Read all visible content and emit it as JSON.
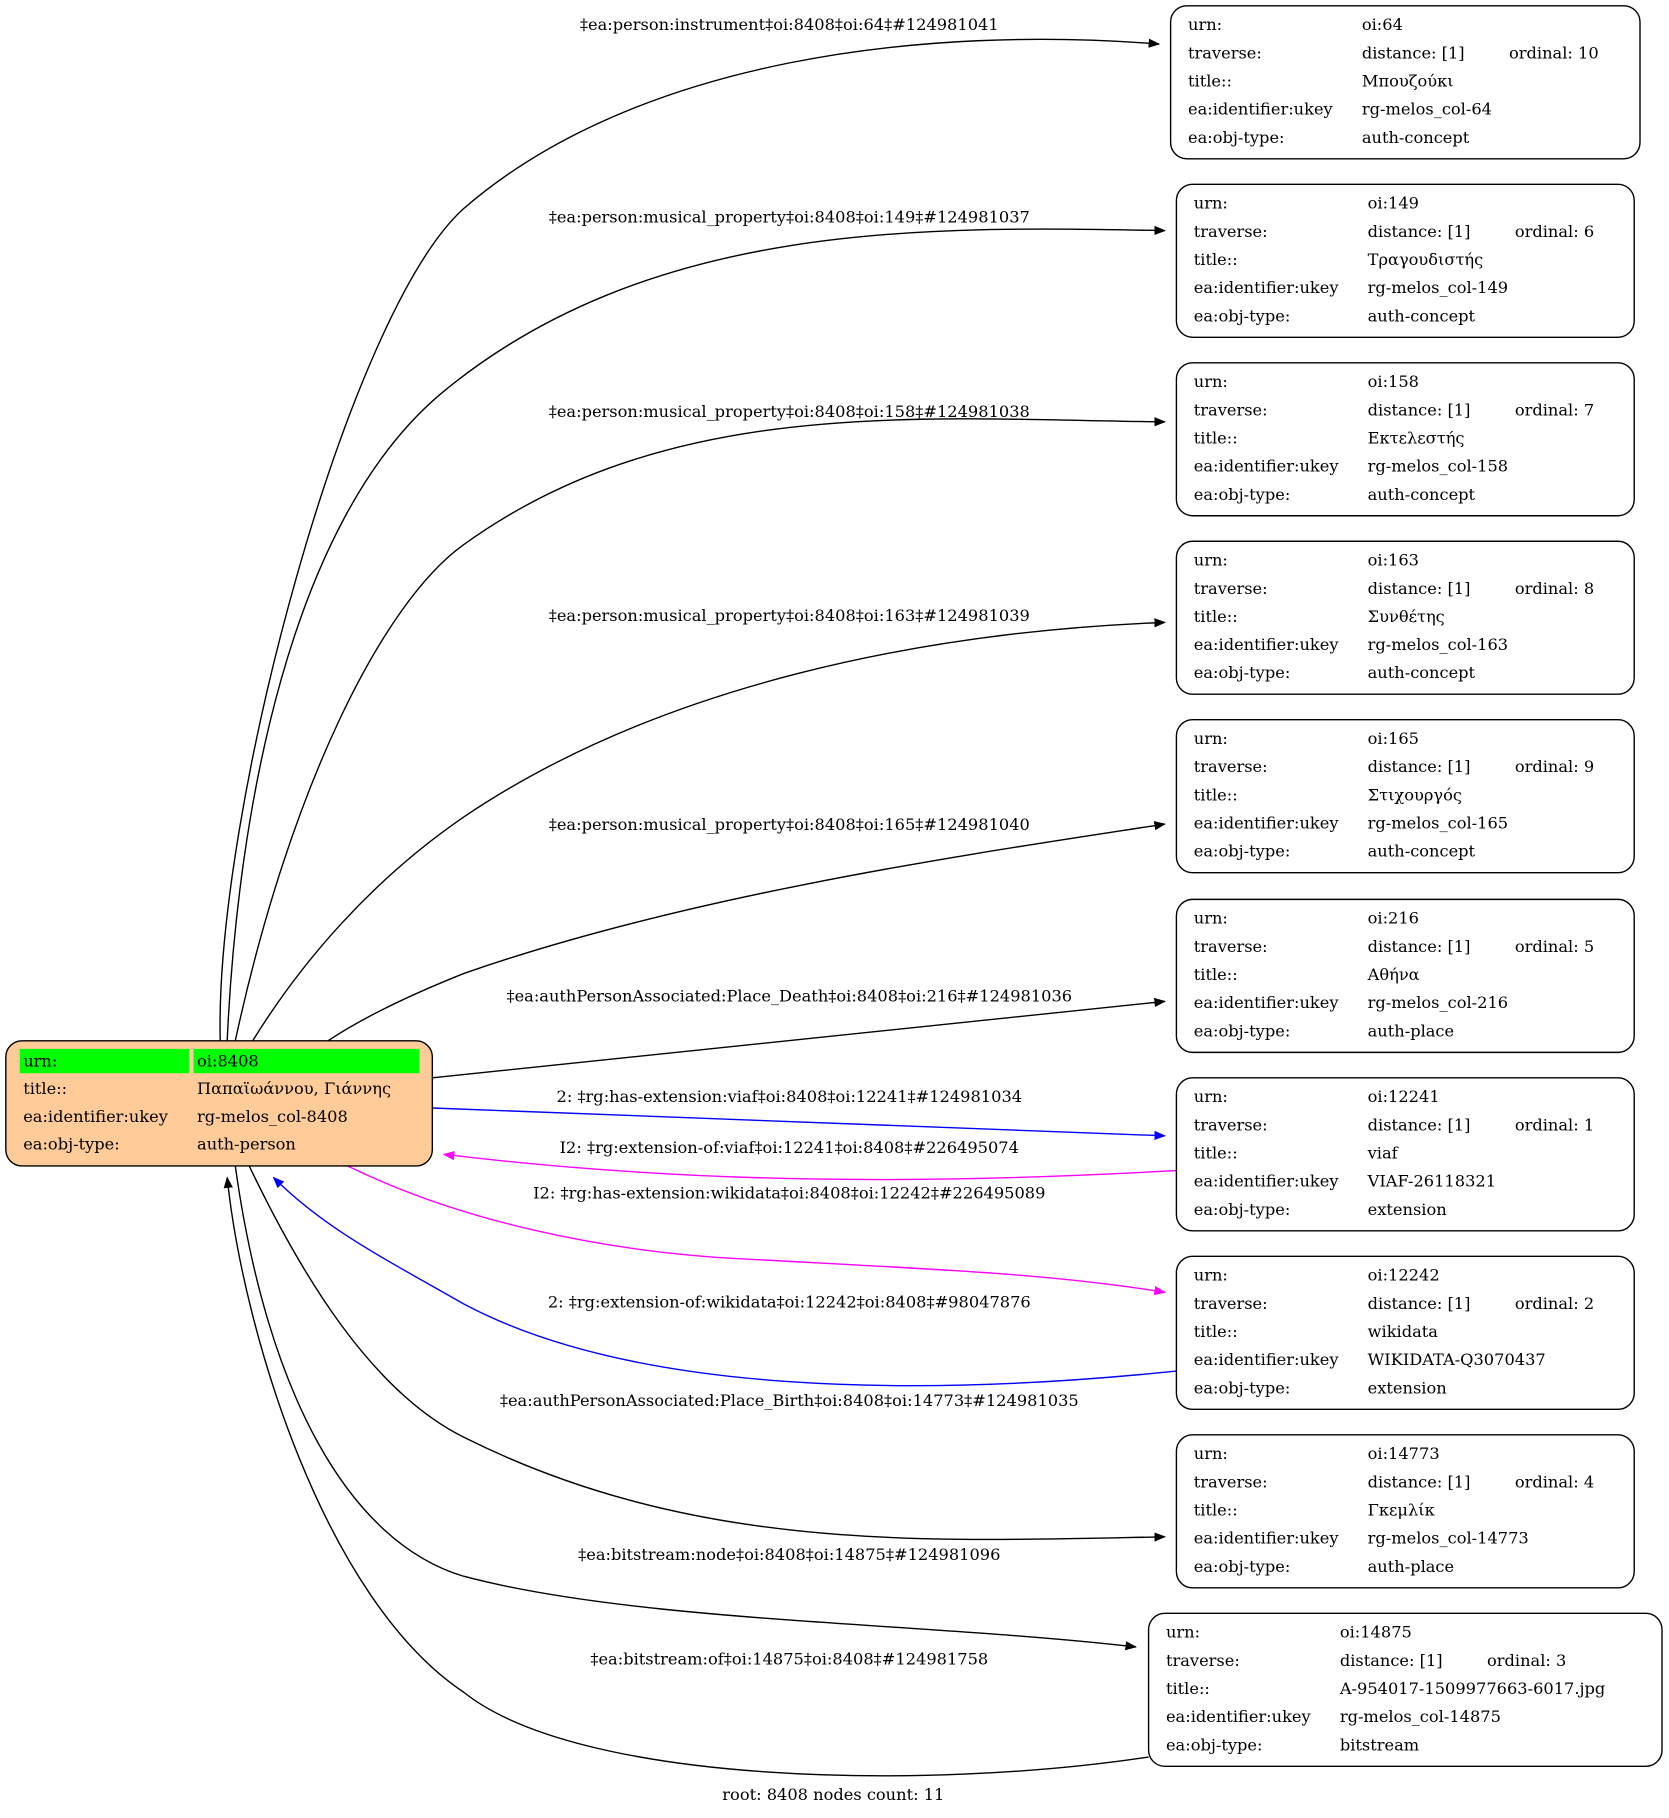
{
  "root": {
    "rows": [
      {
        "key": "urn:",
        "value": "oi:8408"
      },
      {
        "key": "title::",
        "value": "Παπαϊωάννου, Γιάννης"
      },
      {
        "key": "ea:identifier:ukey",
        "value": "rg-melos_col-8408"
      },
      {
        "key": "ea:obj-type:",
        "value": "auth-person"
      }
    ],
    "fill_color": "#ffcc99",
    "highlight_color": "#00ff00"
  },
  "nodes": [
    {
      "urn": "oi:64",
      "distance": "distance: [1]",
      "ordinal": "ordinal: 10",
      "title": "Μπουζούκι",
      "ukey": "rg-melos_col-64",
      "type": "auth-concept"
    },
    {
      "urn": "oi:149",
      "distance": "distance: [1]",
      "ordinal": "ordinal: 6",
      "title": "Τραγουδιστής",
      "ukey": "rg-melos_col-149",
      "type": "auth-concept"
    },
    {
      "urn": "oi:158",
      "distance": "distance: [1]",
      "ordinal": "ordinal: 7",
      "title": "Εκτελεστής",
      "ukey": "rg-melos_col-158",
      "type": "auth-concept"
    },
    {
      "urn": "oi:163",
      "distance": "distance: [1]",
      "ordinal": "ordinal: 8",
      "title": "Συνθέτης",
      "ukey": "rg-melos_col-163",
      "type": "auth-concept"
    },
    {
      "urn": "oi:165",
      "distance": "distance: [1]",
      "ordinal": "ordinal: 9",
      "title": "Στιχουργός",
      "ukey": "rg-melos_col-165",
      "type": "auth-concept"
    },
    {
      "urn": "oi:216",
      "distance": "distance: [1]",
      "ordinal": "ordinal: 5",
      "title": "Αθήνα",
      "ukey": "rg-melos_col-216",
      "type": "auth-place"
    },
    {
      "urn": "oi:12241",
      "distance": "distance: [1]",
      "ordinal": "ordinal: 1",
      "title": "viaf",
      "ukey": "VIAF-26118321",
      "type": "extension"
    },
    {
      "urn": "oi:12242",
      "distance": "distance: [1]",
      "ordinal": "ordinal: 2",
      "title": "wikidata",
      "ukey": "WIKIDATA-Q3070437",
      "type": "extension"
    },
    {
      "urn": "oi:14773",
      "distance": "distance: [1]",
      "ordinal": "ordinal: 4",
      "title": "Γκεμλίκ",
      "ukey": "rg-melos_col-14773",
      "type": "auth-place"
    },
    {
      "urn": "oi:14875",
      "distance": "distance: [1]",
      "ordinal": "ordinal: 3",
      "title": "A-954017-1509977663-6017.jpg",
      "ukey": "rg-melos_col-14875",
      "type": "bitstream"
    }
  ],
  "row_keys": {
    "urn": "urn:",
    "traverse": "traverse:",
    "title": "title::",
    "ukey": "ea:identifier:ukey",
    "type": "ea:obj-type:"
  },
  "edges": [
    {
      "label": "‡ea:person:instrument‡oi:8408‡oi:64‡#124981041",
      "color": "#000000"
    },
    {
      "label": "‡ea:person:musical_property‡oi:8408‡oi:149‡#124981037",
      "color": "#000000"
    },
    {
      "label": "‡ea:person:musical_property‡oi:8408‡oi:158‡#124981038",
      "color": "#000000"
    },
    {
      "label": "‡ea:person:musical_property‡oi:8408‡oi:163‡#124981039",
      "color": "#000000"
    },
    {
      "label": "‡ea:person:musical_property‡oi:8408‡oi:165‡#124981040",
      "color": "#000000"
    },
    {
      "label": "‡ea:authPersonAssociated:Place_Death‡oi:8408‡oi:216‡#124981036",
      "color": "#000000"
    },
    {
      "label": "2: ‡rg:has-extension:viaf‡oi:8408‡oi:12241‡#124981034",
      "color": "#0000ff"
    },
    {
      "label": "I2: ‡rg:extension-of:viaf‡oi:12241‡oi:8408‡#226495074",
      "color": "#ff00ff"
    },
    {
      "label": "I2: ‡rg:has-extension:wikidata‡oi:8408‡oi:12242‡#226495089",
      "color": "#ff00ff"
    },
    {
      "label": "2: ‡rg:extension-of:wikidata‡oi:12242‡oi:8408‡#98047876",
      "color": "#0000ff"
    },
    {
      "label": "‡ea:authPersonAssociated:Place_Birth‡oi:8408‡oi:14773‡#124981035",
      "color": "#000000"
    },
    {
      "label": "‡ea:bitstream:node‡oi:8408‡oi:14875‡#124981096",
      "color": "#000000"
    },
    {
      "label": "‡ea:bitstream:of‡oi:14875‡oi:8408‡#124981758",
      "color": "#000000"
    }
  ],
  "footer": "root: 8408 nodes count: 11"
}
